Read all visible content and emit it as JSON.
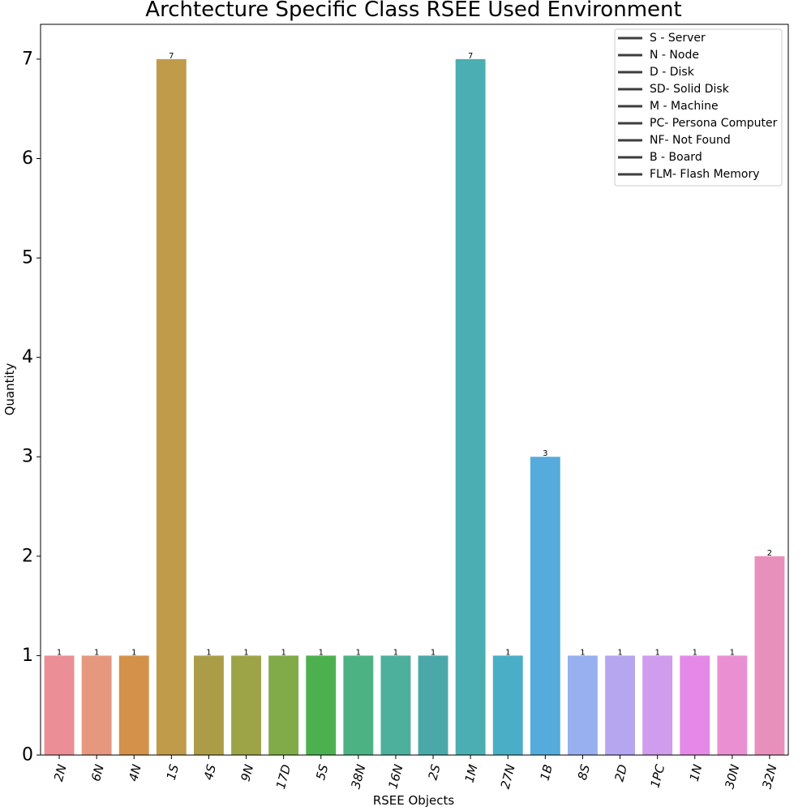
{
  "chart_data": {
    "type": "bar",
    "title": "Archtecture Specific Class RSEE Used Environment",
    "xlabel": "RSEE Objects",
    "ylabel": "Quantity",
    "categories": [
      "2N",
      "6N",
      "4N",
      "1S",
      "4S",
      "9N",
      "17D",
      "5S",
      "38N",
      "16N",
      "2S",
      "1M",
      "27N",
      "1B",
      "8S",
      "2D",
      "1PC",
      "1N",
      "30N",
      "32N"
    ],
    "values": [
      1,
      1,
      1,
      7,
      1,
      1,
      1,
      1,
      1,
      1,
      1,
      7,
      1,
      3,
      1,
      1,
      1,
      1,
      1,
      2
    ],
    "data_labels": [
      "1",
      "1",
      "1",
      "7",
      "1",
      "1",
      "1",
      "1",
      "1",
      "1",
      "1",
      "7",
      "1",
      "3",
      "1",
      "1",
      "1",
      "1",
      "1",
      "2"
    ],
    "colors": [
      "#eb8e95",
      "#e6987e",
      "#d4914a",
      "#c09b4a",
      "#ab9d48",
      "#9da448",
      "#80ab48",
      "#4cb04f",
      "#4cb283",
      "#4cb09c",
      "#4aa9a8",
      "#4aaeb2",
      "#4aaec7",
      "#55abdb",
      "#98aff0",
      "#b6a6f0",
      "#d09ced",
      "#e589e8",
      "#ea90d2",
      "#e98fbb"
    ],
    "ylim": [
      0,
      7.35
    ],
    "yticks": [
      "0",
      "1",
      "2",
      "3",
      "4",
      "5",
      "6",
      "7"
    ],
    "grid": false,
    "legend": {
      "placement": "top-right",
      "entries": [
        "S - Server",
        "N - Node",
        "D - Disk",
        "SD- Solid Disk",
        "M - Machine",
        "PC- Persona Computer",
        "NF- Not Found",
        "B - Board",
        "FLM- Flash Memory"
      ],
      "line_color": "#3d3d3d"
    }
  }
}
